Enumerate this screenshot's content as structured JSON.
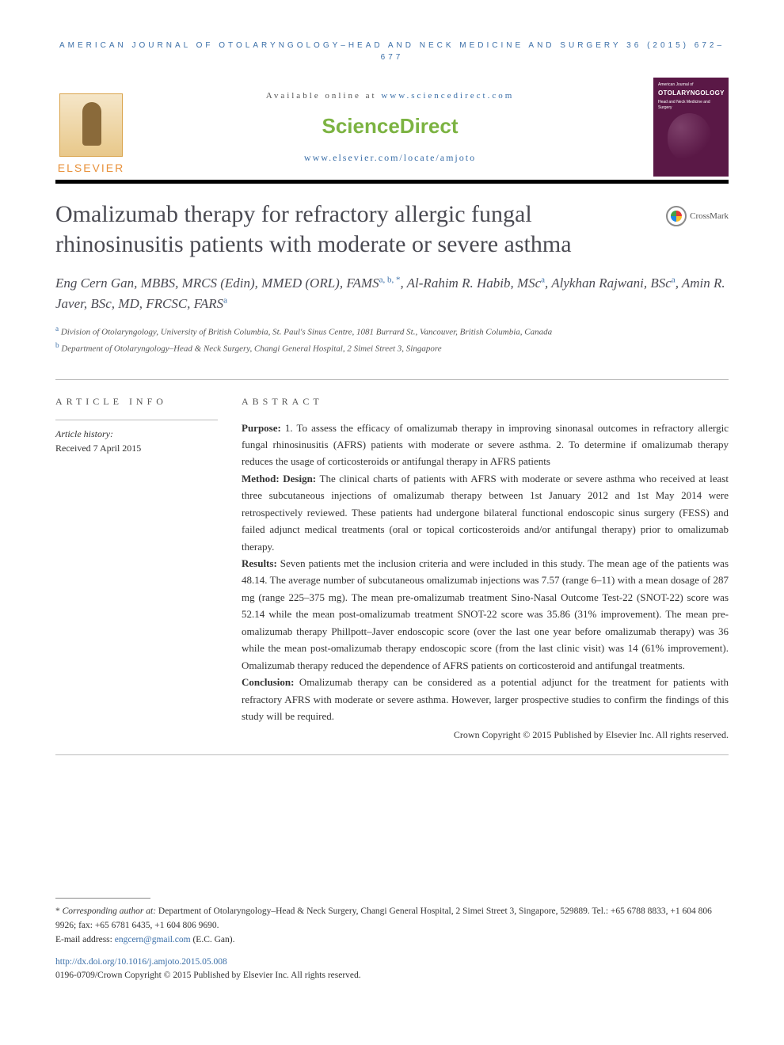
{
  "running_head": "AMERICAN JOURNAL OF OTOLARYNGOLOGY–HEAD AND NECK MEDICINE AND SURGERY 36 (2015) 672–677",
  "masthead": {
    "available_prefix": "Available online at ",
    "available_url": "www.sciencedirect.com",
    "sd_logo": "ScienceDirect",
    "journal_url": "www.elsevier.com/locate/amjoto",
    "elsevier_word": "ELSEVIER",
    "cover": {
      "line1": "American Journal of",
      "line2": "OTOLARYNGOLOGY",
      "line3": "Head and Neck Medicine and Surgery"
    }
  },
  "title": "Omalizumab therapy for refractory allergic fungal rhinosinusitis patients with moderate or severe asthma",
  "crossmark": "CrossMark",
  "authors_html": "Eng Cern Gan, MBBS, MRCS (Edin), MMED (ORL), FAMS",
  "author1_sup": "a, b, *",
  "author2": ", Al-Rahim R. Habib, MSc",
  "author2_sup": "a",
  "author3": ", Alykhan Rajwani, BSc",
  "author3_sup": "a",
  "author4": ", Amin R. Javer, BSc, MD, FRCSC, FARS",
  "author4_sup": "a",
  "affiliations": {
    "a_marker": "a",
    "a": " Division of Otolaryngology, University of British Columbia, St. Paul's Sinus Centre, 1081 Burrard St., Vancouver, British Columbia, Canada",
    "b_marker": "b",
    "b": " Department of Otolaryngology–Head & Neck Surgery, Changi General Hospital, 2 Simei Street 3, Singapore"
  },
  "info": {
    "heading": "ARTICLE INFO",
    "history_label": "Article history:",
    "received": "Received 7 April 2015"
  },
  "abstract": {
    "heading": "ABSTRACT",
    "purpose_label": "Purpose:",
    "purpose": " 1. To assess the efficacy of omalizumab therapy in improving sinonasal outcomes in refractory allergic fungal rhinosinusitis (AFRS) patients with moderate or severe asthma. 2. To determine if omalizumab therapy reduces the usage of corticosteroids or antifungal therapy in AFRS patients",
    "method_label": "Method: Design:",
    "method": " The clinical charts of patients with AFRS with moderate or severe asthma who received at least three subcutaneous injections of omalizumab therapy between 1st January 2012 and 1st May 2014 were retrospectively reviewed. These patients had undergone bilateral functional endoscopic sinus surgery (FESS) and failed adjunct medical treatments (oral or topical corticosteroids and/or antifungal therapy) prior to omalizumab therapy.",
    "results_label": "Results:",
    "results": " Seven patients met the inclusion criteria and were included in this study. The mean age of the patients was 48.14. The average number of subcutaneous omalizumab injections was 7.57 (range 6–11) with a mean dosage of 287 mg (range 225–375 mg). The mean pre-omalizumab treatment Sino-Nasal Outcome Test-22 (SNOT-22) score was 52.14 while the mean post-omalizumab treatment SNOT-22 score was 35.86 (31% improvement). The mean pre-omalizumab therapy Phillpott–Javer endoscopic score (over the last one year before omalizumab therapy) was 36 while the mean post-omalizumab therapy endoscopic score (from the last clinic visit) was 14 (61% improvement). Omalizumab therapy reduced the dependence of AFRS patients on corticosteroid and antifungal treatments.",
    "conclusion_label": "Conclusion:",
    "conclusion": " Omalizumab therapy can be considered as a potential adjunct for the treatment for patients with refractory AFRS with moderate or severe asthma. However, larger prospective studies to confirm the findings of this study will be required.",
    "copyright": "Crown Copyright © 2015 Published by Elsevier Inc. All rights reserved."
  },
  "footnotes": {
    "corr_marker": "*",
    "corr_label": " Corresponding author at:",
    "corr_text": " Department of Otolaryngology–Head & Neck Surgery, Changi General Hospital, 2 Simei Street 3, Singapore, 529889. Tel.: +65 6788 8833, +1 604 806 9926; fax: +65 6781 6435, +1 604 806 9690.",
    "email_label": "E-mail address: ",
    "email": "engcern@gmail.com",
    "email_tail": " (E.C. Gan)."
  },
  "doi": "http://dx.doi.org/10.1016/j.amjoto.2015.05.008",
  "issn_line": "0196-0709/Crown Copyright © 2015 Published by Elsevier Inc. All rights reserved."
}
